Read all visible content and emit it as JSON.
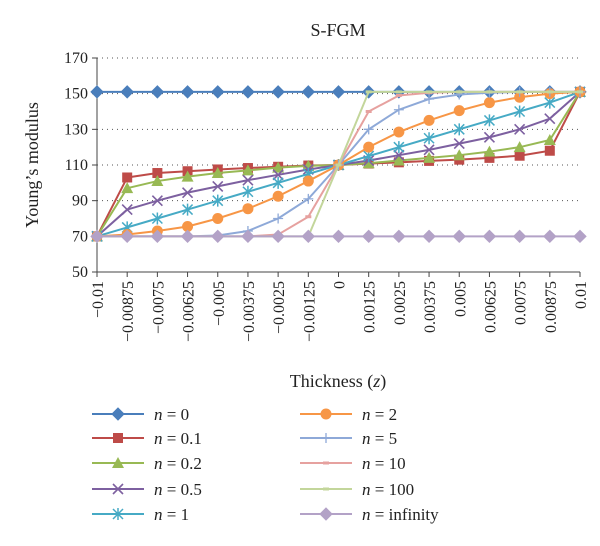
{
  "chart_data": {
    "type": "line",
    "title": "S-FGM",
    "ylabel": "Young’s modulus",
    "xlabel_prefix": "Thickness (",
    "xlabel_var": "z",
    "xlabel_suffix": ")",
    "ylim": [
      50,
      170
    ],
    "yticks": [
      50,
      70,
      90,
      110,
      130,
      150,
      170
    ],
    "grid": "horizontal-dotted",
    "legend_position": "bottom",
    "categories": [
      "−0.01",
      "−0.00875",
      "−0.0075",
      "−0.00625",
      "−0.005",
      "−0.00375",
      "−0.0025",
      "−0.00125",
      "0",
      "0.00125",
      "0.0025",
      "0.00375",
      "0.005",
      "0.00625",
      "0.0075",
      "0.00875",
      "0.01"
    ],
    "series": [
      {
        "n": "0",
        "color": "#4a7ebb",
        "marker": "diamond",
        "values": [
          151,
          151,
          151,
          151,
          151,
          151,
          151,
          151,
          151,
          151,
          151,
          151,
          151,
          151,
          151,
          151,
          151
        ]
      },
      {
        "n": "0.1",
        "color": "#be4b48",
        "marker": "square",
        "values": [
          70,
          103,
          105.5,
          106.5,
          107.5,
          108.3,
          109,
          109.7,
          110,
          110.8,
          111.5,
          112.3,
          113,
          114,
          115.2,
          118,
          151
        ]
      },
      {
        "n": "0.2",
        "color": "#98b954",
        "marker": "triangle",
        "values": [
          70,
          97,
          101,
          103.5,
          105.5,
          107,
          108.5,
          109.5,
          110,
          111,
          112.5,
          114,
          115.5,
          117.5,
          120,
          124,
          151
        ]
      },
      {
        "n": "0.5",
        "color": "#7d60a0",
        "marker": "x",
        "values": [
          70,
          85,
          90,
          94.5,
          98,
          101.5,
          104.5,
          107.5,
          110,
          112.5,
          115.5,
          118.5,
          122,
          125.5,
          130,
          136,
          151
        ]
      },
      {
        "n": "1",
        "color": "#46aac5",
        "marker": "star",
        "values": [
          70,
          75,
          80,
          85,
          90,
          95,
          100,
          105,
          110,
          115,
          120,
          125,
          130,
          135,
          140,
          145,
          151
        ]
      },
      {
        "n": "2",
        "color": "#f79646",
        "marker": "circle",
        "values": [
          70,
          71,
          73,
          75.5,
          80,
          85.5,
          92.5,
          101,
          110,
          120,
          128.5,
          135,
          140.5,
          145,
          148,
          150,
          151
        ]
      },
      {
        "n": "5",
        "color": "#8ea9d8",
        "marker": "plus",
        "values": [
          70,
          70,
          70,
          70,
          70.5,
          73,
          80,
          91,
          110,
          130,
          141,
          147,
          149.5,
          150.5,
          151,
          151,
          151
        ]
      },
      {
        "n": "10",
        "color": "#e6a19f",
        "marker": "dash",
        "values": [
          70,
          70,
          70,
          70,
          70,
          70,
          71,
          81,
          110,
          140,
          149,
          150.5,
          151,
          151,
          151,
          151,
          151
        ]
      },
      {
        "n": "100",
        "color": "#c3d69b",
        "marker": "dash",
        "values": [
          70,
          70,
          70,
          70,
          70,
          70,
          70,
          70,
          110,
          151,
          151,
          151,
          151,
          151,
          151,
          151,
          151
        ]
      },
      {
        "n": "infinity",
        "color": "#b3a2c7",
        "marker": "diamond",
        "values": [
          70,
          70,
          70,
          70,
          70,
          70,
          70,
          70,
          70,
          70,
          70,
          70,
          70,
          70,
          70,
          70,
          70
        ]
      }
    ],
    "legend_prefix": "n",
    "legend_eq": " = ",
    "legend_columns": [
      [
        0,
        1,
        2,
        3,
        4
      ],
      [
        5,
        6,
        7,
        8,
        9
      ]
    ]
  }
}
